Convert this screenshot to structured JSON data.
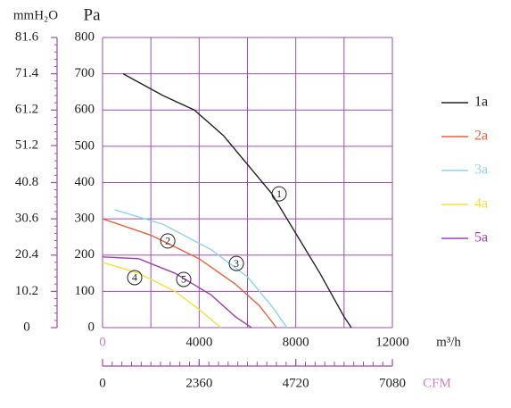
{
  "chart_data": {
    "type": "line",
    "y_label": "Pa",
    "y2_label": "mmH₂O",
    "x_label": "m³/h",
    "x2_label": "CFM",
    "xlim": [
      0,
      12000
    ],
    "xticks": [
      0,
      4000,
      8000,
      12000
    ],
    "ylim": [
      0,
      800
    ],
    "yticks": [
      0,
      100,
      200,
      300,
      400,
      500,
      600,
      700,
      800
    ],
    "y2lim": [
      0,
      81.6
    ],
    "y2ticks": [
      0,
      10.2,
      20.4,
      30.6,
      40.8,
      51.2,
      61.2,
      71.4,
      81.6
    ],
    "x2lim": [
      0,
      7080
    ],
    "x2ticks": [
      0,
      2360,
      4720,
      7080
    ],
    "grid": true,
    "legend": "right",
    "series": [
      {
        "name": "1a",
        "color": "#222222",
        "x": [
          850,
          2500,
          3800,
          5000,
          6000,
          7000,
          8000,
          9000,
          10000,
          10300
        ],
        "values": [
          700,
          640,
          600,
          530,
          450,
          370,
          260,
          150,
          30,
          0
        ]
      },
      {
        "name": "2a",
        "color": "#e8603c",
        "x": [
          0,
          2000,
          4000,
          5500,
          6500,
          7200
        ],
        "values": [
          300,
          255,
          190,
          120,
          60,
          0
        ]
      },
      {
        "name": "3a",
        "color": "#8fd3e8",
        "x": [
          500,
          2500,
          4500,
          6000,
          7000,
          7640
        ],
        "values": [
          325,
          285,
          215,
          140,
          60,
          0
        ]
      },
      {
        "name": "4a",
        "color": "#f0e040",
        "x": [
          0,
          1500,
          3000,
          4000,
          4900
        ],
        "values": [
          180,
          150,
          100,
          50,
          0
        ]
      },
      {
        "name": "5a",
        "color": "#a040b0",
        "x": [
          0,
          1500,
          3000,
          4500,
          5500,
          6170
        ],
        "values": [
          195,
          190,
          150,
          90,
          30,
          0
        ]
      }
    ],
    "annotations": [
      {
        "text": "1",
        "x": 7310,
        "y": 369
      },
      {
        "text": "2",
        "x": 2700,
        "y": 239
      },
      {
        "text": "3",
        "x": 5540,
        "y": 177
      },
      {
        "text": "4",
        "x": 1330,
        "y": 138
      },
      {
        "text": "5",
        "x": 3360,
        "y": 133
      }
    ]
  }
}
